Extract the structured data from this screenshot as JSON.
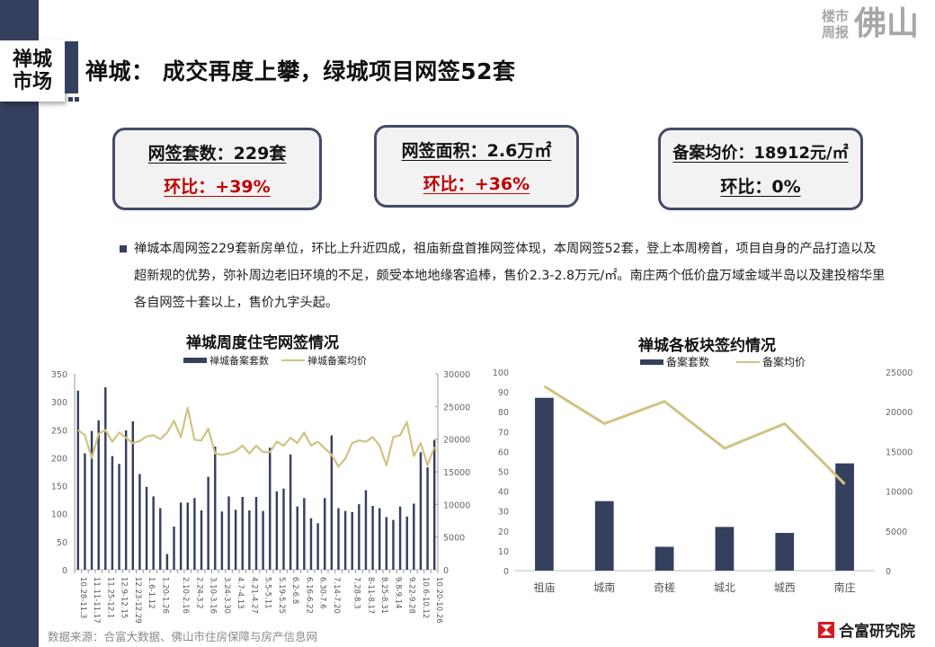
{
  "section_tag": {
    "line1": "禅城",
    "line2": "市场"
  },
  "page_title": "禅城： 成交再度上攀，绿城项目网签52套",
  "brand": {
    "small_line1": "楼市",
    "small_line2": "周报",
    "big": "佛山"
  },
  "kpis": [
    {
      "main": "网签套数：229套",
      "change": "环比：+39%",
      "trend": "up"
    },
    {
      "main": "网签面积：2.6万㎡",
      "change": "环比：+36%",
      "trend": "up"
    },
    {
      "main": "备案均价：18912元/㎡",
      "change": "环比：0%",
      "trend": "flat"
    }
  ],
  "summary": "禅城本周网签229套新房单位，环比上升近四成，祖庙新盘首推网签体现，本周网签52套，登上本周榜首，项目自身的产品打造以及超新规的优势，弥补周边老旧环境的不足，颇受本地地缘客追棒，售价2.3-2.8万元/㎡。南庄两个低价盘万域金域半岛以及建投榕华里各自网签十套以上，售价九字头起。",
  "colors": {
    "primary": "#35405f",
    "accent_line": "#d0c383",
    "up_red": "#c00000",
    "brand_gray": "#a7a7a7"
  },
  "charts": {
    "left": {
      "title": "禅城周度住宅网签情况",
      "legend_bar": "禅城备案套数",
      "legend_line": "禅城备案均价"
    },
    "right": {
      "title": "禅城各板块签约情况",
      "legend_bar": "备案套数",
      "legend_line": "备案均价"
    }
  },
  "chart_data": [
    {
      "type": "bar",
      "combo": "bar+line (dual axis)",
      "title": "禅城周度住宅网签情况",
      "legend_position": "top",
      "ylim": [
        0,
        350
      ],
      "y_ticks": [
        0,
        50,
        100,
        150,
        200,
        250,
        300,
        350
      ],
      "y2lim": [
        0,
        30000
      ],
      "y2_ticks": [
        0,
        5000,
        10000,
        15000,
        20000,
        25000,
        30000
      ],
      "x_tick_labels": [
        "10.28-11.3",
        "11.11-11.17",
        "11.25-12.1",
        "12.9-12.15",
        "12.23-12.29",
        "1.6-1.12",
        "1.20-1.26",
        "2.10-2.16",
        "2.24-3.2",
        "3.10-3.16",
        "3.24-3.30",
        "4.7-4.13",
        "4.21-4.27",
        "5.5-5.11",
        "5.19-5.25",
        "6.2-6.8",
        "6.16-6.22",
        "6.30-7.6",
        "7.14-7.20",
        "7.28-8.3",
        "8-11-8.17",
        "8.25-8.31",
        "9.8-9.14",
        "9.22-9.28",
        "10.6-10.12",
        "10.20-10.26"
      ],
      "series": [
        {
          "name": "禅城备案套数",
          "axis": "left",
          "kind": "bar",
          "values": [
            320,
            208,
            248,
            267,
            326,
            203,
            189,
            249,
            265,
            171,
            148,
            131,
            110,
            28,
            77,
            120,
            120,
            128,
            106,
            166,
            220,
            104,
            131,
            107,
            130,
            106,
            130,
            105,
            218,
            140,
            145,
            206,
            113,
            128,
            92,
            83,
            128,
            240,
            110,
            105,
            103,
            117,
            142,
            114,
            110,
            94,
            89,
            113,
            95,
            118,
            210,
            183,
            232
          ],
          "note": "53 weekly bars; values estimated from gridlines"
        },
        {
          "name": "禅城备案均价",
          "axis": "right",
          "kind": "line",
          "values": [
            21400,
            20600,
            17100,
            20800,
            21400,
            19600,
            21000,
            20200,
            19400,
            19700,
            20400,
            20600,
            20000,
            21000,
            22800,
            20300,
            24800,
            19900,
            19800,
            21600,
            17800,
            17600,
            17800,
            18200,
            19000,
            17800,
            19000,
            18000,
            18000,
            19600,
            19000,
            20200,
            19400,
            21000,
            19000,
            19600,
            18600,
            17600,
            15800,
            17000,
            19400,
            19800,
            19600,
            20300,
            19000,
            16000,
            20300,
            20600,
            22600,
            17400,
            19400,
            16000,
            18800
          ],
          "note": "estimated from right axis"
        }
      ]
    },
    {
      "type": "bar",
      "combo": "bar+line (dual axis)",
      "title": "禅城各板块签约情况",
      "legend_position": "top",
      "categories": [
        "祖庙",
        "城南",
        "奇槎",
        "城北",
        "城西",
        "南庄"
      ],
      "ylim": [
        0,
        100
      ],
      "y_ticks": [
        0,
        10,
        20,
        30,
        40,
        50,
        60,
        70,
        80,
        90,
        100
      ],
      "y2lim": [
        0,
        25000
      ],
      "y2_ticks": [
        0,
        5000,
        10000,
        15000,
        20000,
        25000
      ],
      "series": [
        {
          "name": "备案套数",
          "axis": "left",
          "kind": "bar",
          "values": [
            87,
            35,
            12,
            22,
            19,
            54
          ]
        },
        {
          "name": "备案均价",
          "axis": "right",
          "kind": "line",
          "values": [
            23200,
            18500,
            21300,
            15400,
            18500,
            10900
          ]
        }
      ]
    }
  ],
  "footer": {
    "source": "数据来源：合富大数据、佛山市住房保障与房产信息网",
    "logo_text": "合富研究院"
  }
}
